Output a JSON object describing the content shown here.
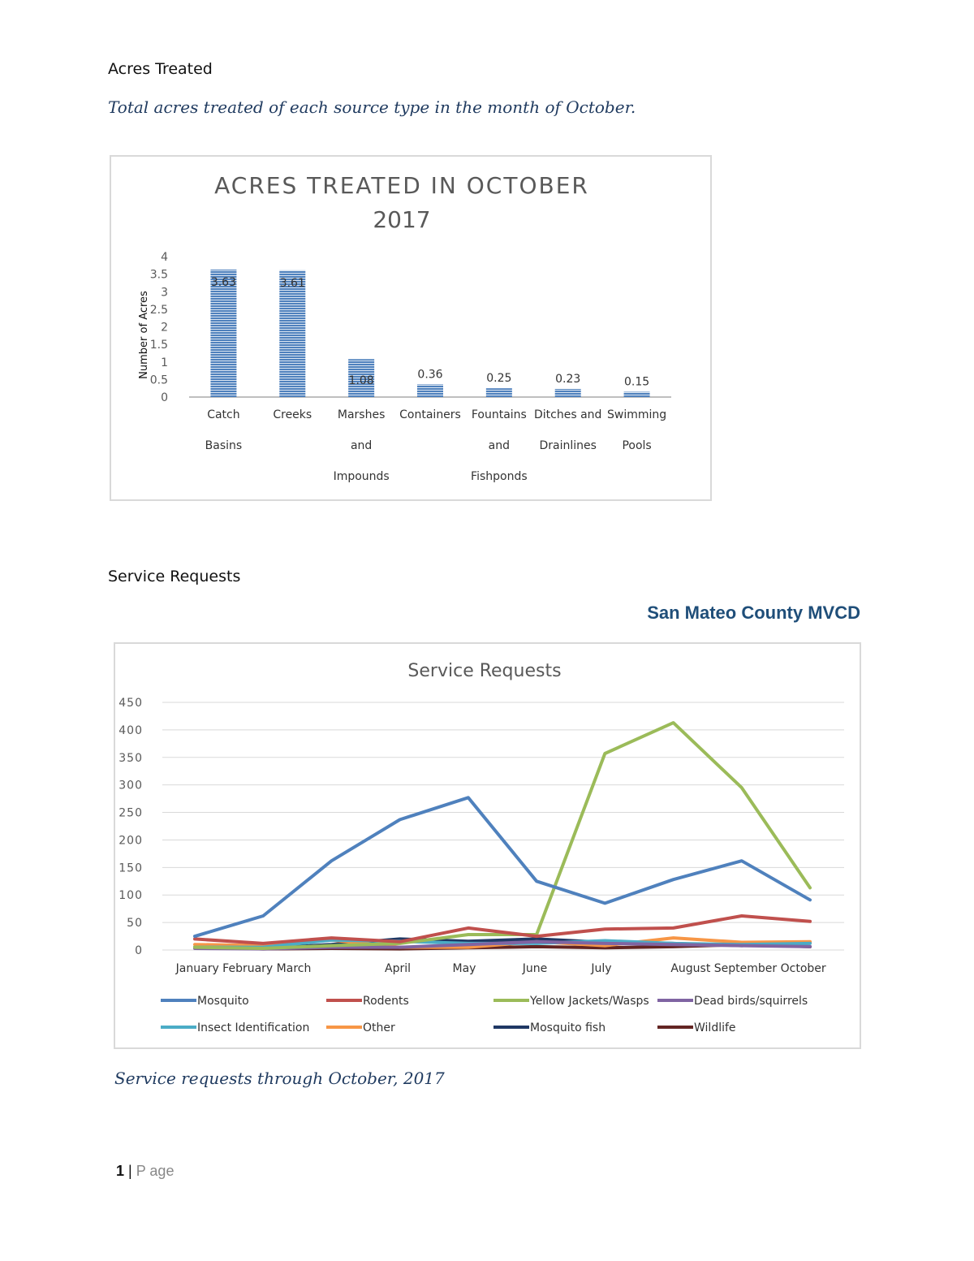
{
  "acres": {
    "heading": "Acres Treated",
    "caption": "Total acres treated of each source type in the month of October."
  },
  "service": {
    "heading": "Service Requests",
    "org_name": "San Mateo County MVCD",
    "caption": "Service requests through October, 2017"
  },
  "footer": {
    "page_number": "1",
    "separator": "|",
    "page_label": "P age"
  },
  "colors": {
    "bar_fill": "#4f81bd",
    "bar_stripe": "#dbe5f1",
    "grid": "#d9d9d9",
    "axis_text": "#595959"
  },
  "chart_data": [
    {
      "type": "bar",
      "title_lines": [
        "ACRES TREATED IN OCTOBER",
        "2017"
      ],
      "ylabel": "Number of Acres",
      "xlabel": "",
      "ylim": [
        0,
        4
      ],
      "yticks": [
        "0",
        "0.5",
        "1",
        "1.5",
        "2",
        "2.5",
        "3",
        "3.5",
        "4"
      ],
      "categories": [
        [
          "Catch",
          "Basins"
        ],
        [
          "Creeks"
        ],
        [
          "Marshes",
          "and",
          "Impounds"
        ],
        [
          "Containers"
        ],
        [
          "Fountains",
          "and",
          "Fishponds"
        ],
        [
          "Ditches and",
          "Drainlines"
        ],
        [
          "Swimming",
          "Pools"
        ]
      ],
      "values": [
        3.63,
        3.61,
        1.08,
        0.36,
        0.25,
        0.23,
        0.15
      ],
      "data_labels": [
        "3.63",
        "3.61",
        "1.08",
        "0.36",
        "0.25",
        "0.23",
        "0.15"
      ],
      "grid": false,
      "legend": "none"
    },
    {
      "type": "line",
      "title": "Service Requests",
      "xlabel": "",
      "ylabel": "",
      "ylim": [
        0,
        450
      ],
      "yticks": [
        "0",
        "50",
        "100",
        "150",
        "200",
        "250",
        "300",
        "350",
        "400",
        "450"
      ],
      "categories": [
        "January",
        "February",
        "March",
        "April",
        "May",
        "June",
        "July",
        "August",
        "September",
        "October"
      ],
      "category_labels": [
        "January February March",
        "April",
        "May",
        "June",
        "July",
        "August September October"
      ],
      "grid": true,
      "legend": "bottom",
      "series": [
        {
          "name": "Mosquito",
          "color": "#4f81bd",
          "values": [
            25,
            62,
            162,
            237,
            277,
            125,
            85,
            128,
            162,
            91
          ]
        },
        {
          "name": "Rodents",
          "color": "#c0504d",
          "values": [
            20,
            12,
            22,
            15,
            40,
            25,
            38,
            40,
            62,
            52
          ]
        },
        {
          "name": "Yellow Jackets/Wasps",
          "color": "#9bbb59",
          "values": [
            5,
            3,
            8,
            12,
            28,
            28,
            357,
            413,
            295,
            113
          ]
        },
        {
          "name": "Dead birds/squirrels",
          "color": "#8064a2",
          "values": [
            3,
            2,
            5,
            5,
            10,
            15,
            12,
            10,
            8,
            6
          ]
        },
        {
          "name": "Insect Identification",
          "color": "#4bacc6",
          "values": [
            5,
            5,
            18,
            16,
            12,
            12,
            17,
            12,
            10,
            12
          ]
        },
        {
          "name": "Other",
          "color": "#f79646",
          "values": [
            10,
            8,
            18,
            5,
            5,
            15,
            8,
            22,
            14,
            15
          ]
        },
        {
          "name": "Mosquito fish",
          "color": "#1f3864",
          "values": [
            5,
            3,
            10,
            20,
            16,
            20,
            14,
            12,
            8,
            14
          ]
        },
        {
          "name": "Wildlife",
          "color": "#632523",
          "values": [
            5,
            2,
            3,
            2,
            4,
            6,
            4,
            6,
            10,
            6
          ]
        }
      ]
    }
  ]
}
